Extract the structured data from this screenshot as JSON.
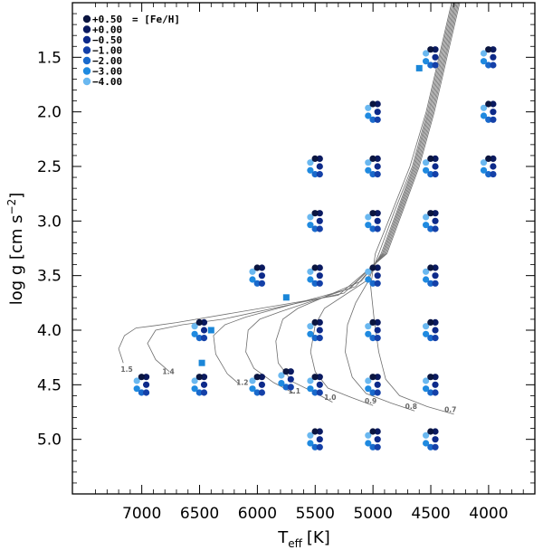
{
  "chart_data": {
    "type": "scatter",
    "title": "",
    "xlabel_main": "T",
    "xlabel_sub": "eff",
    "xlabel_unit": "[K]",
    "ylabel_main": "log g  [cm s",
    "ylabel_sup": "−2",
    "ylabel_end": "]",
    "xlim": [
      7600,
      3600
    ],
    "ylim": [
      5.5,
      1.0
    ],
    "x_ticks": [
      7000,
      6500,
      6000,
      5500,
      5000,
      4500,
      4000
    ],
    "x_tick_labels": [
      "7000",
      "6500",
      "6000",
      "5500",
      "5000",
      "4500",
      "4000"
    ],
    "y_ticks": [
      1.5,
      2.0,
      2.5,
      3.0,
      3.5,
      4.0,
      4.5,
      5.0
    ],
    "y_tick_labels": [
      "1.5",
      "2.0",
      "2.5",
      "3.0",
      "3.5",
      "4.0",
      "4.5",
      "5.0"
    ],
    "legend": {
      "header": "= [Fe/H]",
      "entries": [
        {
          "label": "+0.50",
          "color": "#0a1540"
        },
        {
          "label": "+0.00",
          "color": "#0a1a60"
        },
        {
          "label": "−0.50",
          "color": "#0d2a8a"
        },
        {
          "label": "−1.00",
          "color": "#1440a8"
        },
        {
          "label": "−2.00",
          "color": "#1a6acc"
        },
        {
          "label": "−3.00",
          "color": "#1f8ae0"
        },
        {
          "label": "−4.00",
          "color": "#6ab8f0"
        }
      ]
    },
    "grid_points": [
      {
        "teff": 4000,
        "logg": 1.5
      },
      {
        "teff": 4000,
        "logg": 2.0
      },
      {
        "teff": 4000,
        "logg": 2.5
      },
      {
        "teff": 4500,
        "logg": 1.5
      },
      {
        "teff": 4500,
        "logg": 2.5
      },
      {
        "teff": 4500,
        "logg": 3.0
      },
      {
        "teff": 4500,
        "logg": 3.5
      },
      {
        "teff": 4500,
        "logg": 4.0
      },
      {
        "teff": 4500,
        "logg": 4.5
      },
      {
        "teff": 4500,
        "logg": 5.0
      },
      {
        "teff": 5000,
        "logg": 2.0
      },
      {
        "teff": 5000,
        "logg": 2.5
      },
      {
        "teff": 5000,
        "logg": 3.0
      },
      {
        "teff": 5000,
        "logg": 3.5
      },
      {
        "teff": 5000,
        "logg": 4.0
      },
      {
        "teff": 5000,
        "logg": 4.5
      },
      {
        "teff": 5000,
        "logg": 5.0
      },
      {
        "teff": 5500,
        "logg": 2.5
      },
      {
        "teff": 5500,
        "logg": 3.0
      },
      {
        "teff": 5500,
        "logg": 3.5
      },
      {
        "teff": 5500,
        "logg": 4.0
      },
      {
        "teff": 5500,
        "logg": 4.5
      },
      {
        "teff": 5500,
        "logg": 5.0
      },
      {
        "teff": 5750,
        "logg": 4.45
      },
      {
        "teff": 6000,
        "logg": 3.5
      },
      {
        "teff": 6000,
        "logg": 4.5
      },
      {
        "teff": 6500,
        "logg": 4.0
      },
      {
        "teff": 6500,
        "logg": 4.5
      },
      {
        "teff": 7000,
        "logg": 4.5
      }
    ],
    "square_markers": [
      {
        "teff": 4600,
        "logg": 1.6
      },
      {
        "teff": 5750,
        "logg": 3.7
      },
      {
        "teff": 6400,
        "logg": 4.0
      },
      {
        "teff": 6480,
        "logg": 4.3
      }
    ],
    "tracks": [
      {
        "mass": "0.7",
        "label_at": [
          4330,
          4.75
        ],
        "points": [
          [
            4300,
            4.77
          ],
          [
            4530,
            4.7
          ],
          [
            4770,
            4.6
          ],
          [
            4890,
            4.45
          ],
          [
            4950,
            4.2
          ],
          [
            4990,
            3.9
          ],
          [
            5020,
            3.6
          ],
          [
            4980,
            3.3
          ],
          [
            4830,
            2.9
          ],
          [
            4680,
            2.5
          ],
          [
            4540,
            2.0
          ],
          [
            4430,
            1.5
          ],
          [
            4320,
            1.0
          ]
        ]
      },
      {
        "mass": "0.8",
        "label_at": [
          4670,
          4.72
        ],
        "points": [
          [
            4640,
            4.74
          ],
          [
            4840,
            4.67
          ],
          [
            5060,
            4.58
          ],
          [
            5180,
            4.43
          ],
          [
            5240,
            4.2
          ],
          [
            5220,
            3.95
          ],
          [
            5150,
            3.75
          ],
          [
            5040,
            3.55
          ],
          [
            4950,
            3.3
          ],
          [
            4810,
            2.9
          ],
          [
            4660,
            2.5
          ],
          [
            4530,
            2.0
          ],
          [
            4420,
            1.5
          ],
          [
            4310,
            1.0
          ]
        ]
      },
      {
        "mass": "0.9",
        "label_at": [
          5020,
          4.67
        ],
        "points": [
          [
            5000,
            4.69
          ],
          [
            5180,
            4.62
          ],
          [
            5390,
            4.53
          ],
          [
            5500,
            4.38
          ],
          [
            5540,
            4.2
          ],
          [
            5500,
            3.95
          ],
          [
            5420,
            3.8
          ],
          [
            5060,
            3.55
          ],
          [
            4930,
            3.3
          ],
          [
            4790,
            2.9
          ],
          [
            4650,
            2.5
          ],
          [
            4520,
            2.0
          ],
          [
            4410,
            1.5
          ],
          [
            4300,
            1.0
          ]
        ]
      },
      {
        "mass": "1.0",
        "label_at": [
          5370,
          4.64
        ],
        "points": [
          [
            5350,
            4.66
          ],
          [
            5490,
            4.58
          ],
          [
            5700,
            4.47
          ],
          [
            5820,
            4.3
          ],
          [
            5840,
            4.1
          ],
          [
            5780,
            3.9
          ],
          [
            5650,
            3.8
          ],
          [
            5100,
            3.55
          ],
          [
            4920,
            3.3
          ],
          [
            4780,
            2.9
          ],
          [
            4640,
            2.5
          ],
          [
            4510,
            2.0
          ],
          [
            4400,
            1.5
          ],
          [
            4290,
            1.0
          ]
        ]
      },
      {
        "mass": "1.1",
        "label_at": [
          5680,
          4.58
        ],
        "points": [
          [
            5680,
            4.58
          ],
          [
            5860,
            4.48
          ],
          [
            6030,
            4.35
          ],
          [
            6100,
            4.2
          ],
          [
            6080,
            4.0
          ],
          [
            5980,
            3.9
          ],
          [
            5800,
            3.83
          ],
          [
            5150,
            3.6
          ],
          [
            4910,
            3.3
          ],
          [
            4770,
            2.9
          ],
          [
            4630,
            2.5
          ],
          [
            4500,
            2.0
          ],
          [
            4390,
            1.5
          ],
          [
            4280,
            1.0
          ]
        ]
      },
      {
        "mass": "1.2",
        "label_at": [
          6130,
          4.5
        ],
        "points": [
          [
            6150,
            4.5
          ],
          [
            6260,
            4.4
          ],
          [
            6360,
            4.22
          ],
          [
            6380,
            4.05
          ],
          [
            6280,
            3.95
          ],
          [
            6100,
            3.88
          ],
          [
            5200,
            3.62
          ],
          [
            4900,
            3.3
          ],
          [
            4760,
            2.9
          ],
          [
            4620,
            2.5
          ],
          [
            4490,
            2.0
          ],
          [
            4380,
            1.5
          ],
          [
            4270,
            1.0
          ]
        ]
      },
      {
        "mass": "1.4",
        "label_at": [
          6770,
          4.4
        ],
        "points": [
          [
            6760,
            4.38
          ],
          [
            6880,
            4.27
          ],
          [
            6950,
            4.12
          ],
          [
            6880,
            4.0
          ],
          [
            6650,
            3.95
          ],
          [
            6300,
            3.9
          ],
          [
            5250,
            3.66
          ],
          [
            4890,
            3.3
          ],
          [
            4750,
            2.9
          ],
          [
            4610,
            2.5
          ],
          [
            4480,
            2.0
          ],
          [
            4370,
            1.5
          ],
          [
            4260,
            1.0
          ]
        ]
      },
      {
        "mass": "1.5",
        "label_at": [
          7130,
          4.38
        ],
        "points": [
          [
            7160,
            4.3
          ],
          [
            7200,
            4.17
          ],
          [
            7150,
            4.05
          ],
          [
            7050,
            3.98
          ],
          [
            6900,
            3.96
          ],
          [
            6700,
            3.93
          ],
          [
            5300,
            3.68
          ],
          [
            4880,
            3.3
          ],
          [
            4740,
            2.9
          ],
          [
            4600,
            2.5
          ],
          [
            4470,
            2.0
          ],
          [
            4360,
            1.5
          ],
          [
            4250,
            1.0
          ]
        ]
      }
    ]
  }
}
